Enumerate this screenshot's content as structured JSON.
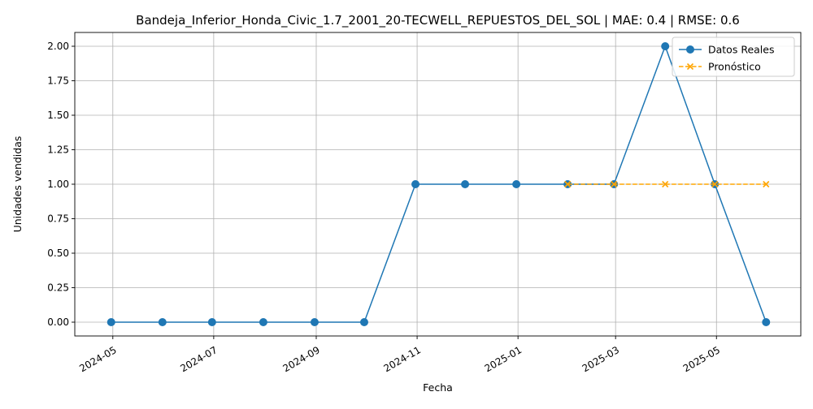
{
  "chart_data": {
    "type": "line",
    "title": "Bandeja_Inferior_Honda_Civic_1.7_2001_20-TECWELL_REPUESTOS_DEL_SOL | MAE: 0.4 | RMSE: 0.6",
    "xlabel": "Fecha",
    "ylabel": "Unidades vendidas",
    "x_type": "date",
    "xlim": [
      "2024-04-08",
      "2025-06-21"
    ],
    "ylim": [
      -0.1,
      2.1
    ],
    "x_ticks": [
      "2024-05",
      "2024-07",
      "2024-09",
      "2024-11",
      "2025-01",
      "2025-03",
      "2025-05"
    ],
    "y_ticks": [
      "0.00",
      "0.25",
      "0.50",
      "0.75",
      "1.00",
      "1.25",
      "1.50",
      "1.75",
      "2.00"
    ],
    "grid": true,
    "legend_position": "upper right",
    "series": [
      {
        "name": "Datos Reales",
        "color": "#1f77b4",
        "line_style": "solid",
        "marker": "circle",
        "x": [
          "2024-04-30",
          "2024-05-31",
          "2024-06-30",
          "2024-07-31",
          "2024-08-31",
          "2024-09-30",
          "2024-10-31",
          "2024-11-30",
          "2024-12-31",
          "2025-01-31",
          "2025-02-28",
          "2025-03-31",
          "2025-04-30",
          "2025-05-31"
        ],
        "y": [
          0,
          0,
          0,
          0,
          0,
          0,
          1,
          1,
          1,
          1,
          1,
          2,
          1,
          0
        ]
      },
      {
        "name": "Pronóstico",
        "color": "#ffa500",
        "line_style": "dashed",
        "marker": "x",
        "x": [
          "2025-01-31",
          "2025-02-28",
          "2025-03-31",
          "2025-04-30",
          "2025-05-31"
        ],
        "y": [
          1,
          1,
          1,
          1,
          1
        ]
      }
    ]
  }
}
